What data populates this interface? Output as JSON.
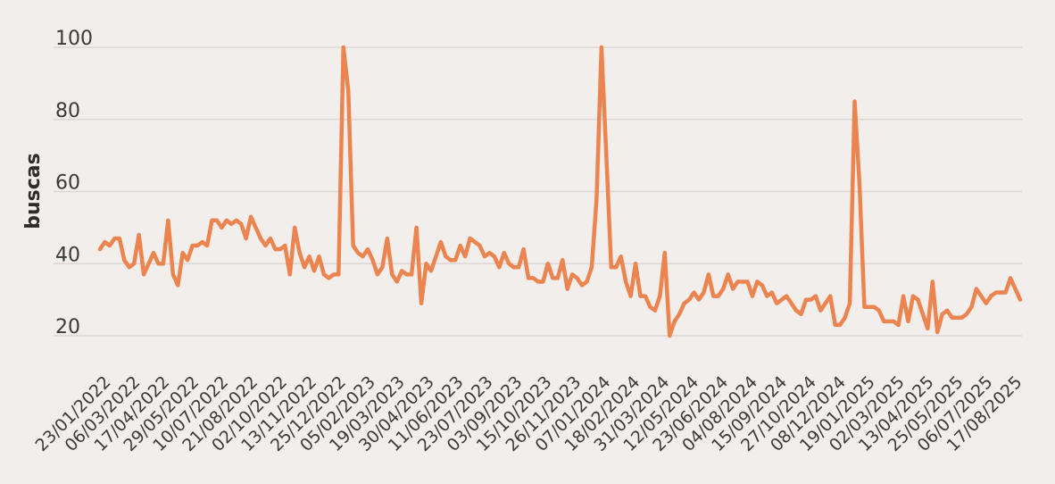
{
  "chart_data": {
    "type": "line",
    "ylabel": "buscas",
    "ylim": [
      10,
      100
    ],
    "y_ticks": [
      20,
      40,
      60,
      80,
      100
    ],
    "grid": "horizontal",
    "legend": "none",
    "colors": {
      "line": "#ec8450",
      "background": "#f2eeec",
      "grid": "#dcd7d5"
    },
    "x_tick_labels": [
      "23/01/2022",
      "06/03/2022",
      "17/04/2022",
      "29/05/2022",
      "10/07/2022",
      "21/08/2022",
      "02/10/2022",
      "13/11/2022",
      "25/12/2022",
      "05/02/2023",
      "19/03/2023",
      "30/04/2023",
      "11/06/2023",
      "23/07/2023",
      "03/09/2023",
      "15/10/2023",
      "26/11/2023",
      "07/01/2024",
      "18/02/2024",
      "31/03/2024",
      "12/05/2024",
      "23/06/2024",
      "04/08/2024",
      "15/09/2024",
      "27/10/2024",
      "08/12/2024",
      "19/01/2025",
      "02/03/2025",
      "13/04/2025",
      "25/05/2025",
      "06/07/2025",
      "17/08/2025"
    ],
    "series": [
      {
        "values": [
          44,
          46,
          45,
          47,
          47,
          41,
          39,
          40,
          48,
          37,
          40,
          43,
          40,
          40,
          52,
          37,
          34,
          43,
          41,
          45,
          45,
          46,
          45,
          52,
          52,
          50,
          52,
          51,
          52,
          51,
          47,
          53,
          50,
          47,
          45,
          47,
          44,
          44,
          45,
          37,
          50,
          43,
          39,
          42,
          38,
          42,
          37,
          36,
          37,
          37,
          100,
          88,
          45,
          43,
          42,
          44,
          41,
          37,
          39,
          47,
          37,
          35,
          38,
          37,
          37,
          50,
          29,
          40,
          38,
          42,
          46,
          42,
          41,
          41,
          45,
          42,
          47,
          46,
          45,
          42,
          43,
          42,
          39,
          43,
          40,
          39,
          39,
          44,
          36,
          36,
          35,
          35,
          40,
          36,
          36,
          41,
          33,
          37,
          36,
          34,
          35,
          39,
          58,
          100,
          70,
          39,
          39,
          42,
          35,
          31,
          40,
          31,
          31,
          28,
          27,
          31,
          43,
          20,
          24,
          26,
          29,
          30,
          32,
          30,
          32,
          37,
          31,
          31,
          33,
          37,
          33,
          35,
          35,
          35,
          31,
          35,
          34,
          31,
          32,
          29,
          30,
          31,
          29,
          27,
          26,
          30,
          30,
          31,
          27,
          29,
          31,
          23,
          23,
          25,
          29,
          85,
          62,
          28,
          28,
          28,
          27,
          24,
          24,
          24,
          23,
          31,
          24,
          31,
          30,
          26,
          22,
          35,
          21,
          26,
          27,
          25,
          25,
          25,
          26,
          28,
          33,
          31,
          29,
          31,
          32,
          32,
          32,
          36,
          33,
          30
        ]
      }
    ]
  }
}
